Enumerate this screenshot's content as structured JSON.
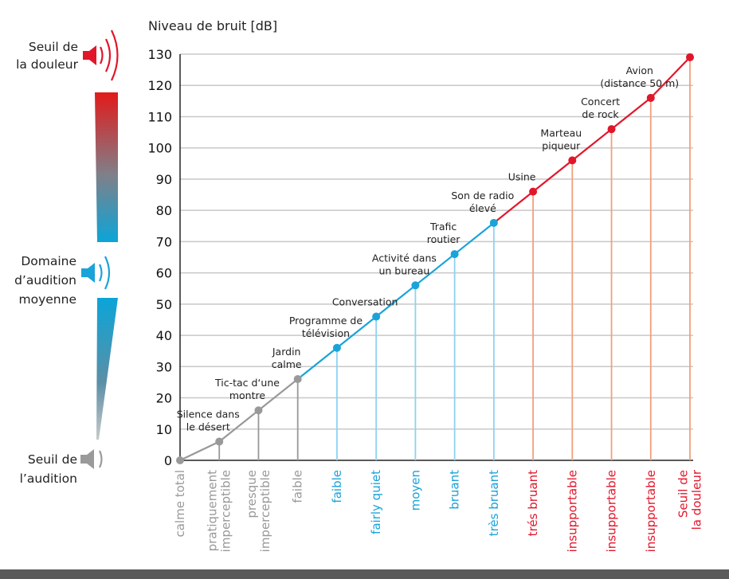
{
  "chart_data": {
    "type": "line",
    "title": "Niveau de bruit [dB]",
    "ylim": [
      0,
      130
    ],
    "yticks": [
      0,
      10,
      20,
      30,
      40,
      50,
      60,
      70,
      80,
      90,
      100,
      110,
      120,
      130
    ],
    "grid": true,
    "categories": [
      "calme total",
      "pratiquement imperceptible",
      "presque imperceptible",
      "faible",
      "faible",
      "fairly quiet",
      "moyen",
      "bruant",
      "très bruant",
      "trés bruant",
      "insupportable",
      "insupportable",
      "insupportable",
      "Seuil de la douleur"
    ],
    "values": [
      0,
      6,
      16,
      26,
      36,
      46,
      56,
      66,
      76,
      86,
      96,
      106,
      116,
      129
    ],
    "zones": [
      "gray",
      "gray",
      "gray",
      "gray",
      "blue",
      "blue",
      "blue",
      "blue",
      "blue",
      "red",
      "red",
      "red",
      "red",
      "red"
    ],
    "point_labels": [
      "",
      "Silence dans le désert",
      "Tic-tac d‘une montre",
      "Jardin calme",
      "Programme de télévision",
      "Conversation",
      "Activité dans un bureau",
      "Trafic routier",
      "Son de radio élevé",
      "Usine",
      "Marteau piqueur",
      "Concert de rock",
      "Avion (distance 50 m)",
      ""
    ],
    "side_labels": {
      "top": "Seuil de la douleur",
      "middle": "Domaine d’audition moyenne",
      "bottom": "Seuil de l’audition"
    }
  },
  "colors": {
    "gray": "#999999",
    "blue": "#1aa3d9",
    "red": "#e2162a",
    "light_blue": "#8dd3f1",
    "light_red": "#f2a07c",
    "grid": "#c8c8c8",
    "speaker_gray": "#9a9a9a"
  },
  "icons": [
    "speaker-loud-icon",
    "speaker-medium-icon",
    "speaker-quiet-icon"
  ]
}
